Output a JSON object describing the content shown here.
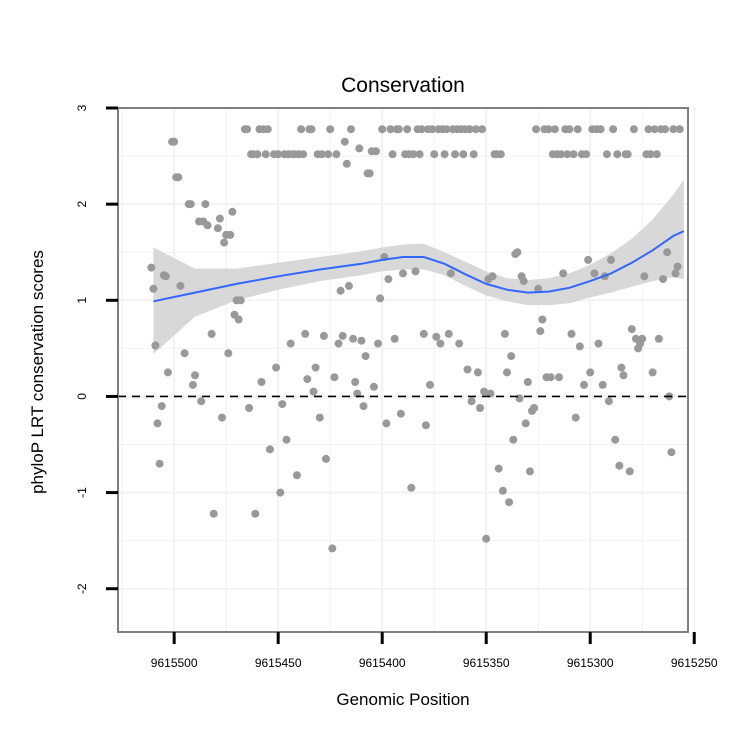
{
  "chart_data": {
    "type": "scatter",
    "title": "Conservation",
    "xlabel": "Genomic Position",
    "ylabel": "phyloP LRT conservation scores",
    "x_reversed": true,
    "xlim": [
      9615253,
      9615527
    ],
    "ylim": [
      -2.45,
      3.0
    ],
    "x_ticks": [
      9615500,
      9615450,
      9615400,
      9615350,
      9615300,
      9615250
    ],
    "x_tick_labels": [
      "9615500",
      "9615450",
      "9615400",
      "9615350",
      "9615300",
      "9615250"
    ],
    "y_ticks": [
      -2,
      -1,
      0,
      1,
      2,
      3
    ],
    "y_tick_labels": [
      "-2",
      "-1",
      "0",
      "1",
      "2",
      "3"
    ],
    "grid": true,
    "reference_line": {
      "y": 0,
      "style": "dashed"
    },
    "colors": {
      "points": "#999999",
      "smooth_line": "#3366ff",
      "confidence_band": "#d6d6d6",
      "panel_border": "#808080",
      "grid": "#f2f2f2"
    },
    "smooth": {
      "method": "loess",
      "x": [
        9615510,
        9615490,
        9615470,
        9615450,
        9615430,
        9615410,
        9615400,
        9615390,
        9615380,
        9615370,
        9615360,
        9615350,
        9615340,
        9615330,
        9615320,
        9615310,
        9615300,
        9615290,
        9615280,
        9615270,
        9615260,
        9615255
      ],
      "y": [
        0.99,
        1.08,
        1.17,
        1.25,
        1.32,
        1.38,
        1.42,
        1.45,
        1.45,
        1.38,
        1.27,
        1.17,
        1.11,
        1.08,
        1.09,
        1.13,
        1.2,
        1.28,
        1.39,
        1.52,
        1.67,
        1.72
      ],
      "lower": [
        0.44,
        0.83,
        1.0,
        1.11,
        1.2,
        1.26,
        1.3,
        1.32,
        1.32,
        1.26,
        1.15,
        1.05,
        0.99,
        0.95,
        0.95,
        0.97,
        1.03,
        1.08,
        1.14,
        1.2,
        1.24,
        1.22
      ],
      "upper": [
        1.55,
        1.33,
        1.33,
        1.39,
        1.45,
        1.51,
        1.55,
        1.58,
        1.59,
        1.5,
        1.4,
        1.3,
        1.23,
        1.21,
        1.23,
        1.28,
        1.37,
        1.49,
        1.64,
        1.84,
        2.1,
        2.25
      ]
    },
    "points": [
      [
        9615511,
        1.34
      ],
      [
        9615510,
        1.12
      ],
      [
        9615509,
        0.53
      ],
      [
        9615508,
        -0.28
      ],
      [
        9615507,
        -0.7
      ],
      [
        9615506,
        -0.1
      ],
      [
        9615505,
        1.26
      ],
      [
        9615504,
        1.25
      ],
      [
        9615503,
        0.25
      ],
      [
        9615501,
        2.65
      ],
      [
        9615500,
        2.65
      ],
      [
        9615499,
        2.28
      ],
      [
        9615498,
        2.28
      ],
      [
        9615497,
        1.15
      ],
      [
        9615495,
        0.45
      ],
      [
        9615493,
        2.0
      ],
      [
        9615492,
        2.0
      ],
      [
        9615491,
        0.12
      ],
      [
        9615490,
        0.22
      ],
      [
        9615488,
        1.82
      ],
      [
        9615487,
        -0.05
      ],
      [
        9615486,
        1.82
      ],
      [
        9615485,
        2.0
      ],
      [
        9615484,
        1.78
      ],
      [
        9615482,
        0.65
      ],
      [
        9615481,
        -1.22
      ],
      [
        9615479,
        1.75
      ],
      [
        9615478,
        1.85
      ],
      [
        9615477,
        -0.22
      ],
      [
        9615476,
        1.6
      ],
      [
        9615475,
        1.68
      ],
      [
        9615474,
        0.45
      ],
      [
        9615473,
        1.68
      ],
      [
        9615472,
        1.92
      ],
      [
        9615471,
        0.85
      ],
      [
        9615470,
        1.0
      ],
      [
        9615469,
        0.8
      ],
      [
        9615468,
        1.0
      ],
      [
        9615466,
        2.78
      ],
      [
        9615465,
        2.78
      ],
      [
        9615464,
        -0.12
      ],
      [
        9615463,
        2.52
      ],
      [
        9615462,
        2.52
      ],
      [
        9615461,
        -1.22
      ],
      [
        9615460,
        2.52
      ],
      [
        9615459,
        2.78
      ],
      [
        9615458,
        0.15
      ],
      [
        9615457,
        2.78
      ],
      [
        9615456,
        2.52
      ],
      [
        9615455,
        2.78
      ],
      [
        9615454,
        -0.55
      ],
      [
        9615452,
        2.52
      ],
      [
        9615451,
        0.3
      ],
      [
        9615450,
        2.52
      ],
      [
        9615449,
        -1.0
      ],
      [
        9615448,
        -0.08
      ],
      [
        9615447,
        2.52
      ],
      [
        9615446,
        -0.45
      ],
      [
        9615445,
        2.52
      ],
      [
        9615444,
        0.55
      ],
      [
        9615443,
        2.52
      ],
      [
        9615442,
        2.52
      ],
      [
        9615441,
        -0.82
      ],
      [
        9615440,
        2.52
      ],
      [
        9615439,
        2.78
      ],
      [
        9615438,
        2.52
      ],
      [
        9615437,
        0.65
      ],
      [
        9615436,
        0.18
      ],
      [
        9615435,
        2.78
      ],
      [
        9615434,
        2.78
      ],
      [
        9615433,
        0.05
      ],
      [
        9615432,
        0.3
      ],
      [
        9615431,
        2.52
      ],
      [
        9615430,
        -0.22
      ],
      [
        9615429,
        2.52
      ],
      [
        9615428,
        0.63
      ],
      [
        9615427,
        -0.65
      ],
      [
        9615426,
        2.52
      ],
      [
        9615425,
        2.78
      ],
      [
        9615424,
        -1.58
      ],
      [
        9615423,
        0.2
      ],
      [
        9615422,
        2.52
      ],
      [
        9615421,
        0.55
      ],
      [
        9615420,
        1.1
      ],
      [
        9615419,
        0.63
      ],
      [
        9615418,
        2.65
      ],
      [
        9615417,
        2.42
      ],
      [
        9615416,
        1.15
      ],
      [
        9615415,
        2.78
      ],
      [
        9615414,
        0.6
      ],
      [
        9615413,
        0.15
      ],
      [
        9615412,
        0.03
      ],
      [
        9615411,
        2.58
      ],
      [
        9615410,
        0.58
      ],
      [
        9615409,
        -0.1
      ],
      [
        9615408,
        0.42
      ],
      [
        9615407,
        2.32
      ],
      [
        9615406,
        2.32
      ],
      [
        9615405,
        2.55
      ],
      [
        9615404,
        0.1
      ],
      [
        9615403,
        2.55
      ],
      [
        9615402,
        0.55
      ],
      [
        9615401,
        1.02
      ],
      [
        9615400,
        2.78
      ],
      [
        9615399,
        1.45
      ],
      [
        9615398,
        -0.28
      ],
      [
        9615397,
        1.22
      ],
      [
        9615396,
        2.78
      ],
      [
        9615395,
        2.52
      ],
      [
        9615394,
        0.6
      ],
      [
        9615393,
        2.78
      ],
      [
        9615392,
        2.78
      ],
      [
        9615391,
        -0.18
      ],
      [
        9615390,
        1.28
      ],
      [
        9615389,
        2.52
      ],
      [
        9615388,
        2.78
      ],
      [
        9615387,
        2.52
      ],
      [
        9615386,
        -0.95
      ],
      [
        9615385,
        2.52
      ],
      [
        9615384,
        1.3
      ],
      [
        9615383,
        2.78
      ],
      [
        9615382,
        2.52
      ],
      [
        9615381,
        2.78
      ],
      [
        9615380,
        0.65
      ],
      [
        9615379,
        -0.3
      ],
      [
        9615378,
        2.78
      ],
      [
        9615377,
        0.12
      ],
      [
        9615376,
        2.78
      ],
      [
        9615375,
        2.52
      ],
      [
        9615374,
        0.62
      ],
      [
        9615373,
        2.78
      ],
      [
        9615372,
        0.55
      ],
      [
        9615371,
        2.78
      ],
      [
        9615370,
        2.52
      ],
      [
        9615369,
        2.78
      ],
      [
        9615368,
        0.65
      ],
      [
        9615367,
        1.28
      ],
      [
        9615366,
        2.78
      ],
      [
        9615365,
        2.52
      ],
      [
        9615364,
        2.78
      ],
      [
        9615363,
        0.55
      ],
      [
        9615362,
        2.78
      ],
      [
        9615361,
        2.52
      ],
      [
        9615360,
        2.78
      ],
      [
        9615359,
        0.28
      ],
      [
        9615358,
        2.78
      ],
      [
        9615357,
        -0.05
      ],
      [
        9615356,
        2.52
      ],
      [
        9615355,
        2.78
      ],
      [
        9615354,
        0.25
      ],
      [
        9615353,
        -0.12
      ],
      [
        9615352,
        2.78
      ],
      [
        9615351,
        0.05
      ],
      [
        9615350,
        -1.48
      ],
      [
        9615349,
        1.22
      ],
      [
        9615348,
        0.03
      ],
      [
        9615347,
        1.25
      ],
      [
        9615346,
        2.52
      ],
      [
        9615345,
        2.52
      ],
      [
        9615344,
        -0.75
      ],
      [
        9615343,
        2.52
      ],
      [
        9615342,
        -0.98
      ],
      [
        9615341,
        0.65
      ],
      [
        9615340,
        0.25
      ],
      [
        9615339,
        -1.1
      ],
      [
        9615338,
        0.42
      ],
      [
        9615337,
        -0.45
      ],
      [
        9615336,
        1.48
      ],
      [
        9615335,
        1.5
      ],
      [
        9615334,
        -0.02
      ],
      [
        9615333,
        1.25
      ],
      [
        9615332,
        1.2
      ],
      [
        9615331,
        -0.28
      ],
      [
        9615330,
        0.15
      ],
      [
        9615329,
        -0.78
      ],
      [
        9615328,
        -0.15
      ],
      [
        9615327,
        -0.12
      ],
      [
        9615326,
        2.78
      ],
      [
        9615325,
        1.12
      ],
      [
        9615324,
        0.68
      ],
      [
        9615323,
        0.8
      ],
      [
        9615322,
        2.78
      ],
      [
        9615321,
        0.2
      ],
      [
        9615320,
        2.78
      ],
      [
        9615319,
        0.2
      ],
      [
        9615318,
        2.52
      ],
      [
        9615317,
        2.78
      ],
      [
        9615316,
        2.52
      ],
      [
        9615315,
        0.2
      ],
      [
        9615314,
        2.52
      ],
      [
        9615313,
        1.28
      ],
      [
        9615312,
        2.78
      ],
      [
        9615311,
        2.52
      ],
      [
        9615310,
        2.78
      ],
      [
        9615309,
        0.65
      ],
      [
        9615308,
        2.52
      ],
      [
        9615307,
        -0.22
      ],
      [
        9615306,
        2.78
      ],
      [
        9615305,
        0.52
      ],
      [
        9615304,
        2.52
      ],
      [
        9615303,
        0.12
      ],
      [
        9615302,
        2.52
      ],
      [
        9615301,
        1.42
      ],
      [
        9615300,
        0.25
      ],
      [
        9615299,
        2.78
      ],
      [
        9615298,
        1.28
      ],
      [
        9615297,
        2.78
      ],
      [
        9615296,
        0.55
      ],
      [
        9615295,
        2.78
      ],
      [
        9615294,
        0.12
      ],
      [
        9615293,
        1.25
      ],
      [
        9615292,
        2.52
      ],
      [
        9615291,
        -0.05
      ],
      [
        9615290,
        1.42
      ],
      [
        9615289,
        2.78
      ],
      [
        9615288,
        -0.45
      ],
      [
        9615287,
        2.52
      ],
      [
        9615286,
        -0.72
      ],
      [
        9615285,
        0.3
      ],
      [
        9615284,
        0.22
      ],
      [
        9615283,
        2.52
      ],
      [
        9615282,
        2.52
      ],
      [
        9615281,
        -0.78
      ],
      [
        9615280,
        0.7
      ],
      [
        9615279,
        2.78
      ],
      [
        9615278,
        0.6
      ],
      [
        9615277,
        0.5
      ],
      [
        9615276,
        0.55
      ],
      [
        9615275,
        0.6
      ],
      [
        9615274,
        1.25
      ],
      [
        9615273,
        2.52
      ],
      [
        9615272,
        2.78
      ],
      [
        9615271,
        2.52
      ],
      [
        9615270,
        0.25
      ],
      [
        9615269,
        2.78
      ],
      [
        9615268,
        2.52
      ],
      [
        9615267,
        0.6
      ],
      [
        9615266,
        2.78
      ],
      [
        9615265,
        1.22
      ],
      [
        9615264,
        2.78
      ],
      [
        9615263,
        1.5
      ],
      [
        9615262,
        0.0
      ],
      [
        9615261,
        -0.58
      ],
      [
        9615260,
        2.78
      ],
      [
        9615259,
        1.28
      ],
      [
        9615258,
        1.35
      ],
      [
        9615257,
        2.78
      ]
    ]
  }
}
